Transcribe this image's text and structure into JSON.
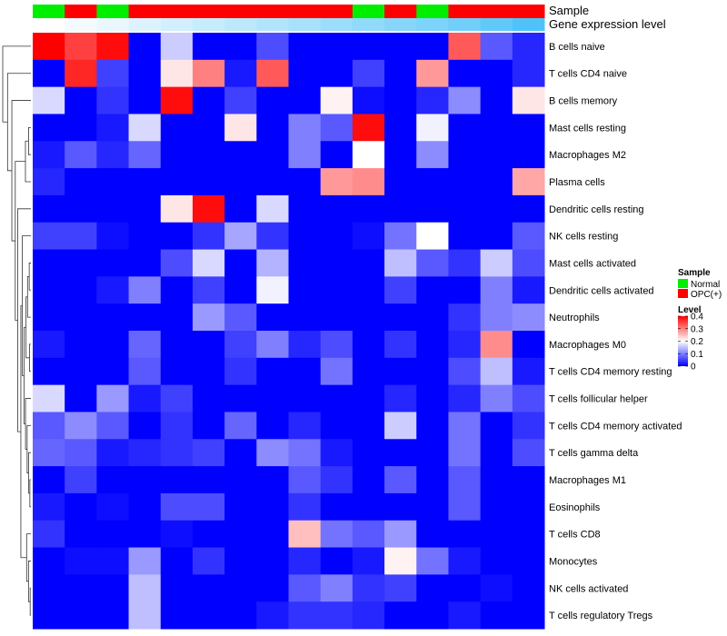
{
  "chart_data": {
    "type": "heatmap",
    "title": "",
    "annotations": [
      {
        "name": "Sample"
      },
      {
        "name": "Gene expression level"
      }
    ],
    "sample_groups": [
      "Normal",
      "OPC",
      "Normal",
      "OPC",
      "OPC",
      "OPC",
      "OPC",
      "OPC",
      "OPC",
      "OPC",
      "Normal",
      "OPC",
      "Normal",
      "OPC",
      "OPC",
      "OPC"
    ],
    "expression_levels": [
      0,
      0.06,
      0.12,
      0.2,
      0.26,
      0.32,
      0.38,
      0.44,
      0.5,
      0.56,
      0.62,
      0.68,
      0.74,
      0.8,
      0.9,
      1.0
    ],
    "rows": [
      {
        "label": "B cells naive",
        "values": [
          0.4,
          0.35,
          0.39,
          0,
          0.16,
          0,
          0,
          0.06,
          0,
          0,
          0,
          0,
          0,
          0.33,
          0.07,
          0.03
        ]
      },
      {
        "label": "T cells CD4 naive",
        "values": [
          0,
          0.37,
          0.05,
          0,
          0.22,
          0.3,
          0.02,
          0.33,
          0,
          0,
          0.05,
          0,
          0.28,
          0,
          0,
          0.03
        ]
      },
      {
        "label": "B cells memory",
        "values": [
          0.17,
          0,
          0.04,
          0,
          0.39,
          0,
          0.05,
          0,
          0,
          0.21,
          0.01,
          0,
          0.03,
          0.11,
          0,
          0.22
        ]
      },
      {
        "label": "Mast cells resting",
        "values": [
          0,
          0,
          0.02,
          0.17,
          0,
          0,
          0.22,
          0,
          0.1,
          0.07,
          0.39,
          0,
          0.19,
          0,
          0,
          0
        ]
      },
      {
        "label": "Macrophages M2",
        "values": [
          0.02,
          0.07,
          0.03,
          0.08,
          0,
          0,
          0,
          0,
          0.1,
          0,
          0.2,
          0,
          0.11,
          0,
          0,
          0
        ]
      },
      {
        "label": "Plasma cells",
        "values": [
          0.03,
          0,
          0,
          0,
          0,
          0,
          0,
          0,
          0,
          0.28,
          0.29,
          0,
          0,
          0,
          0,
          0.27
        ]
      },
      {
        "label": "Dendritic cells resting",
        "values": [
          0,
          0,
          0,
          0,
          0.22,
          0.39,
          0,
          0.17,
          0,
          0,
          0,
          0,
          0,
          0,
          0,
          0
        ]
      },
      {
        "label": "NK cells resting",
        "values": [
          0.05,
          0.05,
          0.01,
          0,
          0,
          0.04,
          0.13,
          0.04,
          0,
          0,
          0.01,
          0.09,
          0.2,
          0,
          0,
          0.07
        ]
      },
      {
        "label": "Mast cells activated",
        "values": [
          0,
          0,
          0,
          0,
          0.06,
          0.17,
          0,
          0.14,
          0,
          0,
          0,
          0.15,
          0.07,
          0.04,
          0.16,
          0.06
        ]
      },
      {
        "label": "Dendritic cells activated",
        "values": [
          0,
          0,
          0.02,
          0.1,
          0,
          0.05,
          0,
          0.19,
          0,
          0,
          0,
          0.05,
          0,
          0,
          0.1,
          0.02
        ]
      },
      {
        "label": "Neutrophils",
        "values": [
          0,
          0,
          0,
          0,
          0,
          0.12,
          0.07,
          0,
          0,
          0,
          0,
          0,
          0,
          0.04,
          0.1,
          0.11
        ]
      },
      {
        "label": "Macrophages M0",
        "values": [
          0.02,
          0,
          0,
          0.08,
          0,
          0,
          0.05,
          0.1,
          0.03,
          0.06,
          0,
          0.04,
          0,
          0.03,
          0.29,
          0
        ]
      },
      {
        "label": "T cells CD4 memory resting",
        "values": [
          0,
          0,
          0,
          0.07,
          0,
          0,
          0.04,
          0,
          0,
          0.09,
          0,
          0,
          0,
          0.06,
          0.15,
          0.02
        ]
      },
      {
        "label": "T cells follicular helper",
        "values": [
          0.17,
          0,
          0.12,
          0.02,
          0.05,
          0,
          0,
          0,
          0,
          0,
          0,
          0.03,
          0,
          0.03,
          0.1,
          0.06
        ]
      },
      {
        "label": "T cells CD4 memory activated",
        "values": [
          0.07,
          0.11,
          0.07,
          0,
          0.04,
          0,
          0.08,
          0,
          0.03,
          0,
          0,
          0.16,
          0,
          0.09,
          0,
          0.04
        ]
      },
      {
        "label": "T cells gamma delta",
        "values": [
          0.08,
          0.07,
          0.02,
          0.03,
          0.04,
          0.05,
          0,
          0.11,
          0.09,
          0.02,
          0,
          0,
          0,
          0.09,
          0,
          0.06
        ]
      },
      {
        "label": "Macrophages M1",
        "values": [
          0,
          0.05,
          0,
          0,
          0,
          0,
          0,
          0,
          0.07,
          0.04,
          0,
          0.07,
          0,
          0.07,
          0,
          0
        ]
      },
      {
        "label": "Eosinophils",
        "values": [
          0.02,
          0,
          0.01,
          0,
          0.06,
          0.06,
          0,
          0,
          0.04,
          0,
          0,
          0,
          0,
          0.07,
          0,
          0
        ]
      },
      {
        "label": "T cells CD8",
        "values": [
          0.04,
          0,
          0,
          0,
          0.01,
          0,
          0,
          0,
          0.25,
          0.09,
          0.07,
          0.12,
          0,
          0,
          0,
          0
        ]
      },
      {
        "label": "Monocytes",
        "values": [
          0,
          0.01,
          0.01,
          0.12,
          0,
          0.04,
          0,
          0,
          0.03,
          0,
          0.02,
          0.21,
          0.09,
          0.02,
          0,
          0
        ]
      },
      {
        "label": "NK cells activated",
        "values": [
          0,
          0,
          0,
          0.15,
          0,
          0,
          0,
          0,
          0.07,
          0.1,
          0.04,
          0.05,
          0,
          0,
          0.01,
          0
        ]
      },
      {
        "label": "T cells regulatory  Tregs",
        "values": [
          0,
          0,
          0,
          0.15,
          0,
          0,
          0,
          0.02,
          0.04,
          0.04,
          0.03,
          0,
          0,
          0.02,
          0,
          0
        ]
      }
    ],
    "legend": {
      "sample_title": "Sample",
      "sample_items": [
        {
          "label": "Normal",
          "color": "#00ee00"
        },
        {
          "label": "OPC(+)",
          "color": "#ff0000"
        }
      ],
      "level_title": "Level",
      "level_ticks": [
        0.4,
        0.3,
        0.2,
        0.1,
        0
      ],
      "level_ticks_text": [
        "0.4",
        "0.3",
        "0.2",
        "0.1",
        "0"
      ],
      "level_range": [
        0,
        0.4
      ]
    }
  },
  "colors": {
    "low": "#0000ff",
    "mid": "#ffffff",
    "high": "#ff0000",
    "normal": "#00ee00",
    "opc": "#ff0000",
    "expr_low": "#ffffff",
    "expr_high": "#4fc3f7"
  }
}
